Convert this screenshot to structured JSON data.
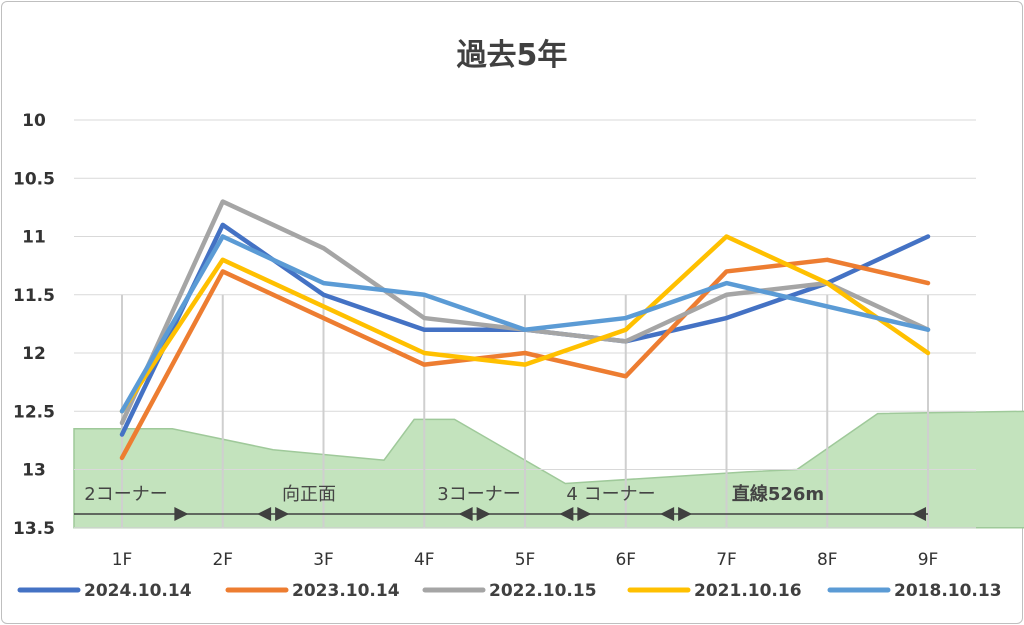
{
  "chart_data": {
    "type": "line",
    "title": "過去5年",
    "categories": [
      "1F",
      "2F",
      "3F",
      "4F",
      "5F",
      "6F",
      "7F",
      "8F",
      "9F"
    ],
    "yticks": [
      "10",
      "10.5",
      "11",
      "11.5",
      "12",
      "12.5",
      "13",
      "13.5"
    ],
    "ylim": [
      10,
      13.5
    ],
    "y_reversed": true,
    "grid": true,
    "legend_position": "bottom",
    "series": [
      {
        "name": "2024.10.14",
        "color": "#4472C4",
        "values": [
          12.7,
          10.9,
          11.5,
          11.8,
          11.8,
          11.9,
          11.7,
          11.4,
          11.0
        ]
      },
      {
        "name": "2023.10.14",
        "color": "#ED7D31",
        "values": [
          12.9,
          11.3,
          11.7,
          12.1,
          12.0,
          12.2,
          11.3,
          11.2,
          11.4
        ]
      },
      {
        "name": "2022.10.15",
        "color": "#A5A5A5",
        "values": [
          12.6,
          10.7,
          11.1,
          11.7,
          11.8,
          11.9,
          11.5,
          11.4,
          11.8
        ]
      },
      {
        "name": "2021.10.16",
        "color": "#FFC000",
        "values": [
          12.5,
          11.2,
          11.6,
          12.0,
          12.1,
          11.8,
          11.0,
          11.4,
          12.0
        ]
      },
      {
        "name": "2018.10.13",
        "color": "#5B9BD5",
        "values": [
          12.5,
          11.0,
          11.4,
          11.5,
          11.8,
          11.7,
          11.4,
          11.6,
          11.8
        ]
      }
    ],
    "course_sections": [
      {
        "label": "2コーナー",
        "start": 0.5,
        "end": 1.5
      },
      {
        "label": "向正面",
        "start": 1.5,
        "end": 3.5
      },
      {
        "label": "3コーナー",
        "start": 3.5,
        "end": 4.5
      },
      {
        "label": "4 コーナー",
        "start": 4.5,
        "end": 5.5
      },
      {
        "label": "直線526m",
        "start": 5.5,
        "end": 9
      }
    ],
    "course_profile": [
      [
        0.5,
        12.65
      ],
      [
        1.5,
        12.83
      ],
      [
        2.6,
        12.92
      ],
      [
        2.9,
        12.57
      ],
      [
        3.3,
        12.57
      ],
      [
        4.4,
        13.12
      ],
      [
        6.2,
        13.02
      ],
      [
        6.7,
        13.0
      ],
      [
        7.5,
        12.52
      ],
      [
        9,
        12.5
      ]
    ],
    "colors": {
      "course_fill": "#C3E3BD",
      "course_edge": "#9FC99A",
      "grid": "#D9D9D9",
      "arrow": "#404040"
    }
  }
}
